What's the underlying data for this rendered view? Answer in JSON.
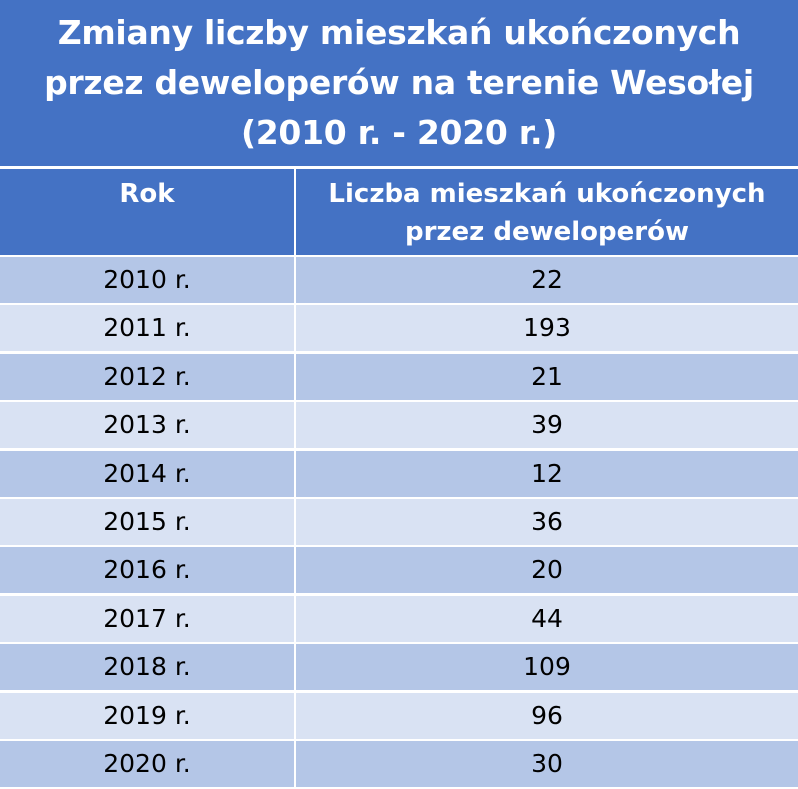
{
  "colors": {
    "header_background": "#4472c4",
    "header_text": "#ffffff",
    "row_band_dark": "#b4c6e7",
    "row_band_light": "#d9e2f3",
    "cell_text": "#000000",
    "grid_line": "#ffffff"
  },
  "chart_data": {
    "type": "table",
    "title_lines": [
      "Zmiany liczby mieszkań ukończonych",
      "przez deweloperów na terenie Wesołej",
      "(2010 r. - 2020 r.)"
    ],
    "columns": [
      "Rok",
      "Liczba mieszkań ukończonych przez deweloperów"
    ],
    "column_header_lines": [
      [
        "Rok"
      ],
      [
        "Liczba mieszkań ukończonych",
        "przez deweloperów"
      ]
    ],
    "rows": [
      {
        "year": "2010 r.",
        "value": 22
      },
      {
        "year": "2011 r.",
        "value": 193
      },
      {
        "year": "2012 r.",
        "value": 21
      },
      {
        "year": "2013 r.",
        "value": 39
      },
      {
        "year": "2014 r.",
        "value": 12
      },
      {
        "year": "2015 r.",
        "value": 36
      },
      {
        "year": "2016 r.",
        "value": 20
      },
      {
        "year": "2017 r.",
        "value": 44
      },
      {
        "year": "2018 r.",
        "value": 109
      },
      {
        "year": "2019 r.",
        "value": 96
      },
      {
        "year": "2020 r.",
        "value": 30
      }
    ]
  }
}
